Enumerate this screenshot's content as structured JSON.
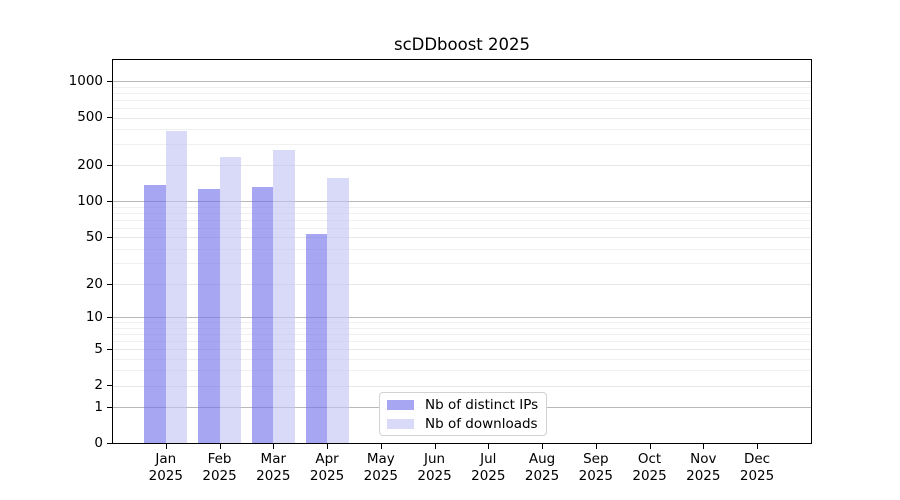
{
  "figure": {
    "title": "scDDboost 2025"
  },
  "chart_data": {
    "type": "bar",
    "title": "scDDboost 2025",
    "categories": [
      "Jan 2025",
      "Feb 2025",
      "Mar 2025",
      "Apr 2025",
      "May 2025",
      "Jun 2025",
      "Jul 2025",
      "Aug 2025",
      "Sep 2025",
      "Oct 2025",
      "Nov 2025",
      "Dec 2025"
    ],
    "series": [
      {
        "name": "Nb of distinct IPs",
        "color": "#a6a6f3",
        "values": [
          138,
          128,
          132,
          53,
          null,
          null,
          null,
          null,
          null,
          null,
          null,
          null
        ]
      },
      {
        "name": "Nb of downloads",
        "color": "#d9d9f8",
        "values": [
          385,
          235,
          268,
          157,
          null,
          null,
          null,
          null,
          null,
          null,
          null,
          null
        ]
      }
    ],
    "xlabel": "",
    "ylabel": "",
    "yscale": "log1p",
    "ylim": [
      0,
      1500
    ],
    "y_ticks": [
      0,
      1,
      2,
      5,
      10,
      20,
      50,
      100,
      200,
      500,
      1000
    ],
    "y_minor_gridlines": [
      3,
      4,
      6,
      7,
      8,
      9,
      30,
      40,
      60,
      70,
      80,
      90,
      300,
      400,
      600,
      700,
      800,
      900
    ],
    "grid": "horizontal",
    "legend_position": "lower center"
  },
  "colors": {
    "major_gridline": "#b9b9b9",
    "light_gridline": "#e7e7e7",
    "minor_gridline": "#f0f0f0",
    "axis": "#000000",
    "legend_border": "#d2d2d2"
  }
}
